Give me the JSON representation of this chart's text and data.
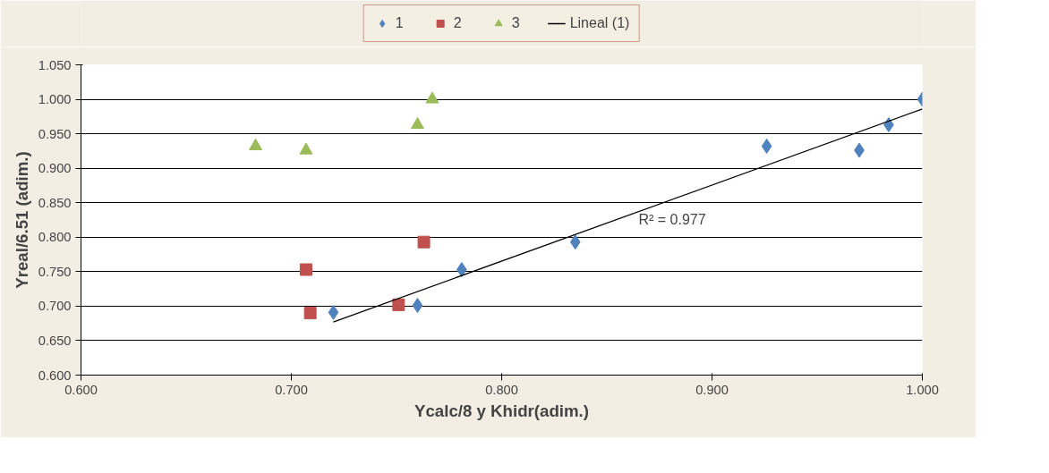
{
  "chart_data": {
    "type": "scatter",
    "xlabel": "Ycalc/8 y Khidr(adim.)",
    "ylabel": "Yreal/6.51 (adim.)",
    "series": [
      {
        "name": "1",
        "color": "#4f81bd",
        "marker": "diamond",
        "x": [
          0.72,
          0.76,
          0.781,
          0.835,
          0.926,
          0.97,
          0.984,
          1.0
        ],
        "values": [
          0.691,
          0.701,
          0.753,
          0.793,
          0.932,
          0.926,
          0.963,
          1.0
        ]
      },
      {
        "name": "2",
        "color": "#c0504d",
        "marker": "square",
        "x": [
          0.707,
          0.709,
          0.751,
          0.763
        ],
        "values": [
          0.753,
          0.69,
          0.702,
          0.793
        ]
      },
      {
        "name": "3",
        "color": "#9bbb59",
        "marker": "triangle",
        "x": [
          0.683,
          0.707,
          0.76,
          0.767
        ],
        "values": [
          0.932,
          0.926,
          0.963,
          1.0
        ]
      },
      {
        "name": "Lineal (1)",
        "type": "line",
        "color": "#000000",
        "x": [
          0.72,
          1.0
        ],
        "values": [
          0.677,
          0.986
        ]
      }
    ],
    "annotations": [
      "R² = 0.977"
    ],
    "xlim": [
      0.6,
      1.0
    ],
    "ylim": [
      0.6,
      1.05
    ],
    "xticks": [
      {
        "value": 0.6,
        "label": "0.600"
      },
      {
        "value": 0.7,
        "label": "0.700"
      },
      {
        "value": 0.8,
        "label": "0.800"
      },
      {
        "value": 0.9,
        "label": "0.900"
      },
      {
        "value": 1.0,
        "label": "1.000"
      }
    ],
    "yticks": [
      {
        "value": 0.6,
        "label": "0.600"
      },
      {
        "value": 0.65,
        "label": "0.650"
      },
      {
        "value": 0.7,
        "label": "0.700"
      },
      {
        "value": 0.75,
        "label": "0.750"
      },
      {
        "value": 0.8,
        "label": "0.800"
      },
      {
        "value": 0.85,
        "label": "0.850"
      },
      {
        "value": 0.9,
        "label": "0.900"
      },
      {
        "value": 0.95,
        "label": "0.950"
      },
      {
        "value": 1.0,
        "label": "1.000"
      },
      {
        "value": 1.05,
        "label": "1.050"
      }
    ],
    "grid": "y",
    "legend": "top"
  }
}
